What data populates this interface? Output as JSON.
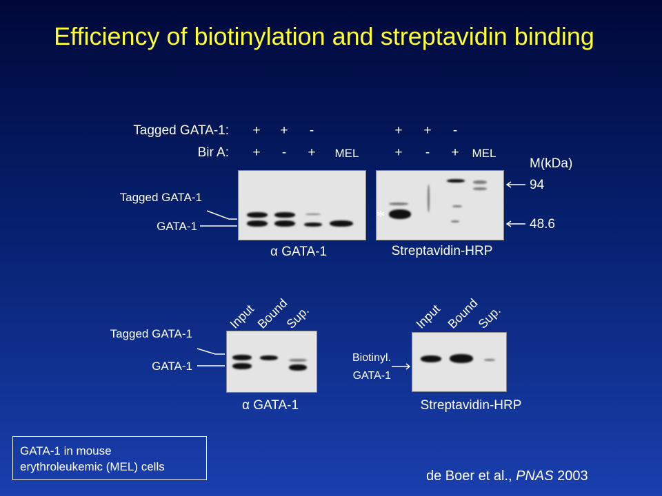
{
  "title": "Efficiency of biotinylation and streptavidin binding",
  "top": {
    "row_labels": [
      "Tagged GATA-1:",
      "Bir A:"
    ],
    "left_blot": {
      "tagged_gata1": [
        "+",
        "+",
        "-"
      ],
      "bir_a": [
        "+",
        "-",
        "+",
        "MEL"
      ],
      "band_labels": [
        "Tagged GATA-1",
        "GATA-1"
      ],
      "caption": "α GATA-1"
    },
    "right_blot": {
      "tagged_gata1": [
        "+",
        "+",
        "-"
      ],
      "bir_a": [
        "+",
        "-",
        "+",
        "MEL"
      ],
      "asterisk": "*",
      "caption": "Streptavidin-HRP"
    },
    "markers": {
      "title": "M(kDa)",
      "values": [
        "94",
        "48.6"
      ]
    }
  },
  "bottom": {
    "left_blot": {
      "lanes": [
        "Input",
        "Bound",
        "Sup."
      ],
      "band_labels": [
        "Tagged GATA-1",
        "GATA-1"
      ],
      "caption": "α GATA-1"
    },
    "right_blot": {
      "lanes": [
        "Input",
        "Bound",
        "Sup."
      ],
      "band_labels": [
        "Biotinyl.",
        "GATA-1"
      ],
      "caption": "Streptavidin-HRP"
    }
  },
  "note": [
    "GATA-1 in mouse",
    "erythroleukemic (MEL) cells"
  ],
  "citation": [
    "de Boer et al.,",
    "PNAS",
    "2003"
  ]
}
